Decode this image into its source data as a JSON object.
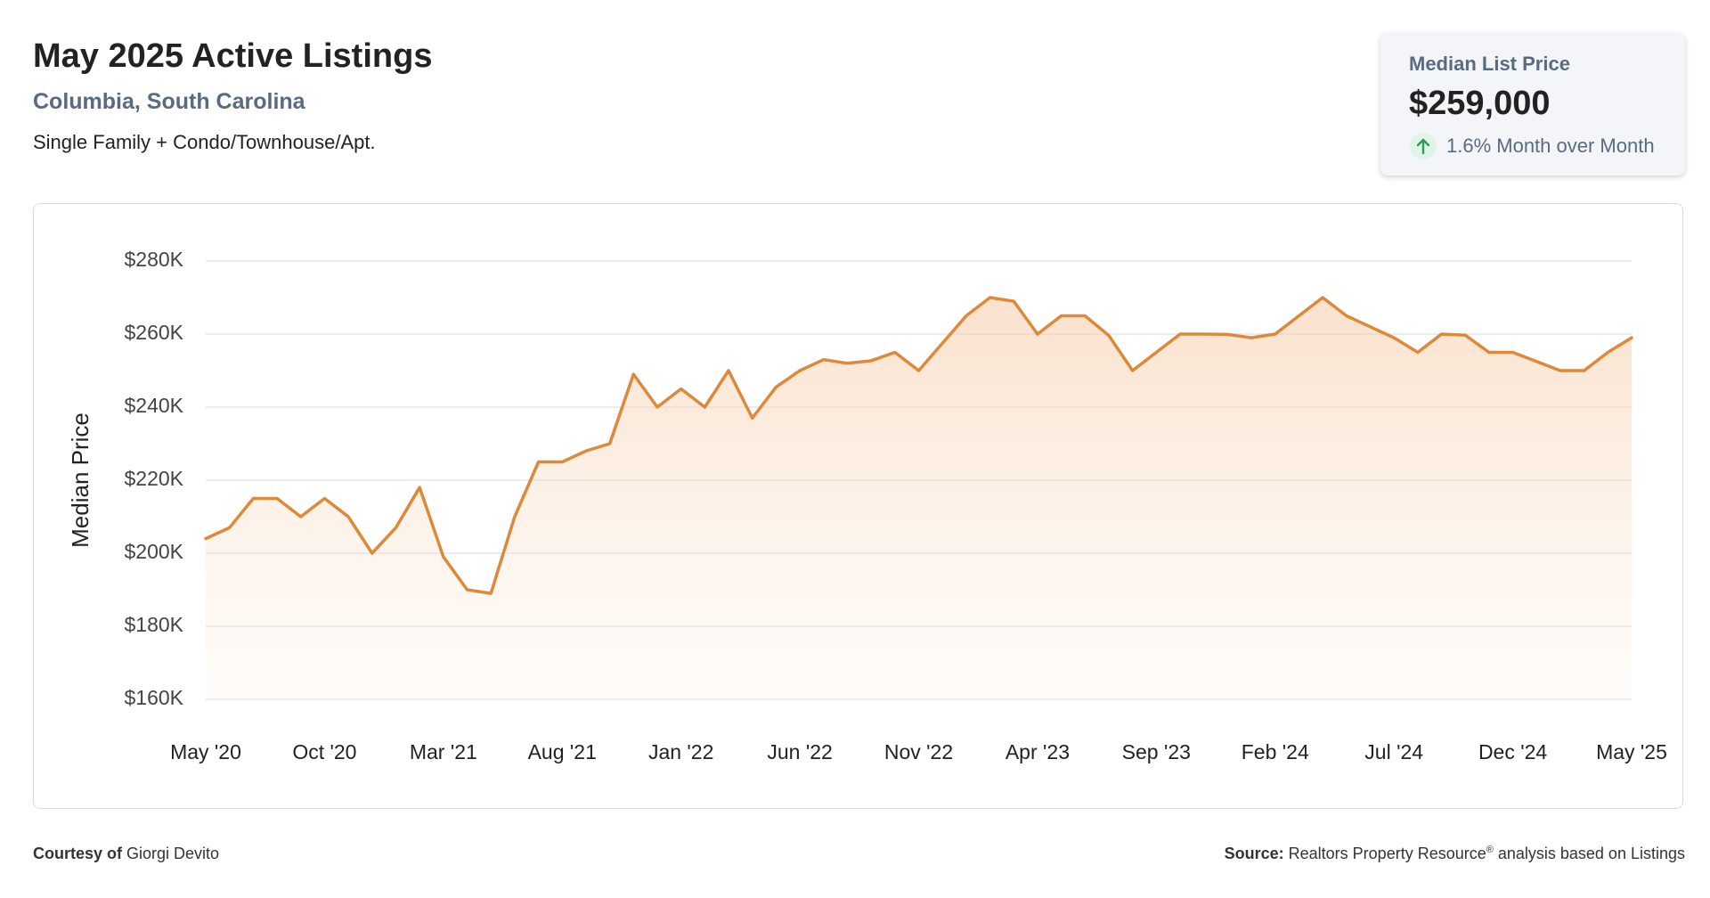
{
  "header": {
    "title": "May 2025 Active Listings",
    "location": "Columbia, South Carolina",
    "property_types": "Single Family + Condo/Townhouse/Apt."
  },
  "card": {
    "label": "Median List Price",
    "value": "$259,000",
    "change": "1.6% Month over Month"
  },
  "chart_data": {
    "type": "line",
    "y_label": "Median Price",
    "color": "#dc8a3a",
    "area": true,
    "grid": true,
    "categories": [
      "May '20",
      null,
      null,
      null,
      null,
      "Oct '20",
      null,
      null,
      null,
      null,
      "Mar '21",
      null,
      null,
      null,
      null,
      "Aug '21",
      null,
      null,
      null,
      null,
      "Jan '22",
      null,
      null,
      null,
      null,
      "Jun '22",
      null,
      null,
      null,
      null,
      "Nov '22",
      null,
      null,
      null,
      null,
      "Apr '23",
      null,
      null,
      null,
      null,
      "Sep '23",
      null,
      null,
      null,
      null,
      "Feb '24",
      null,
      null,
      null,
      null,
      "Jul '24",
      null,
      null,
      null,
      null,
      "Dec '24",
      null,
      null,
      null,
      null,
      "May '25"
    ],
    "values": [
      204000,
      207000,
      215000,
      215000,
      210000,
      215000,
      210000,
      200000,
      207000,
      218000,
      199000,
      190000,
      189000,
      210000,
      225000,
      225000,
      228000,
      230000,
      249000,
      240000,
      245000,
      240000,
      250000,
      237000,
      245500,
      250000,
      253000,
      252000,
      252700,
      255000,
      250000,
      257500,
      265000,
      270000,
      269000,
      260000,
      265000,
      265000,
      259600,
      250000,
      255000,
      260000,
      260000,
      259900,
      259000,
      260000,
      265000,
      270000,
      265000,
      262000,
      259000,
      255000,
      260000,
      259700,
      255000,
      255000,
      252500,
      250000,
      250000,
      255000,
      259000
    ],
    "ylim": [
      160000,
      280000
    ],
    "yticks": [
      {
        "value": 160000,
        "label": "$160K"
      },
      {
        "value": 180000,
        "label": "$180K"
      },
      {
        "value": 200000,
        "label": "$200K"
      },
      {
        "value": 220000,
        "label": "$220K"
      },
      {
        "value": 240000,
        "label": "$240K"
      },
      {
        "value": 260000,
        "label": "$260K"
      },
      {
        "value": 280000,
        "label": "$280K"
      }
    ]
  },
  "footer": {
    "courtesy_label": "Courtesy of",
    "courtesy_name": "Giorgi Devito",
    "source_label": "Source:",
    "source_text": "Realtors Property Resource",
    "source_mark": "®",
    "source_rest": "analysis based on Listings"
  }
}
